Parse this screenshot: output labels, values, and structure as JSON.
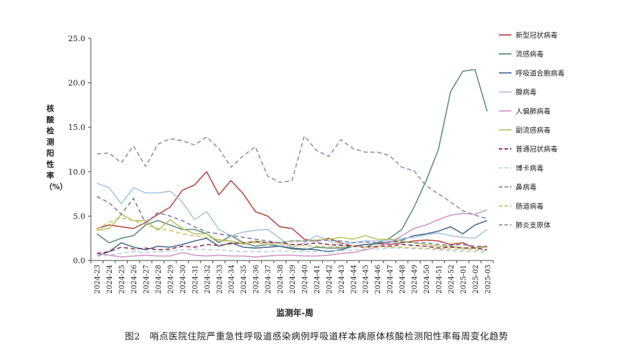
{
  "chart_data": {
    "type": "line",
    "xlabel": "监测年-周",
    "ylabel": "核酸检测阳性率（%）",
    "caption": "图2　哨点医院住院严重急性呼吸道感染病例呼吸道样本病原体核酸检测阳性率每周变化趋势",
    "ylim": [
      0,
      25
    ],
    "yticks": [
      "0.0",
      "5.0",
      "10.0",
      "15.0",
      "20.0",
      "25.0"
    ],
    "grid": false,
    "legend_position": "right",
    "x": [
      "2024-23",
      "2024-24",
      "2024-25",
      "2024-26",
      "2024-27",
      "2024-28",
      "2024-29",
      "2024-30",
      "2024-31",
      "2024-32",
      "2024-33",
      "2024-34",
      "2024-35",
      "2024-36",
      "2024-37",
      "2024-38",
      "2024-39",
      "2024-40",
      "2024-41",
      "2024-42",
      "2024-43",
      "2024-44",
      "2024-45",
      "2024-46",
      "2024-47",
      "2024-48",
      "2024-49",
      "2024-50",
      "2024-51",
      "2024-52",
      "2025-01",
      "2025-02",
      "2025-03"
    ],
    "series": [
      {
        "name": "新型冠状病毒",
        "color": "#b84a45",
        "dash": false,
        "values": [
          3.6,
          4.0,
          3.8,
          3.6,
          4.3,
          5.2,
          6.0,
          7.9,
          8.5,
          10.0,
          7.4,
          9.0,
          7.5,
          5.5,
          5.0,
          3.8,
          3.6,
          2.4,
          2.2,
          2.5,
          2.0,
          1.6,
          1.8,
          1.9,
          1.8,
          2.0,
          2.2,
          2.3,
          2.2,
          1.8,
          2.0,
          1.4,
          1.6
        ]
      },
      {
        "name": "流感病毒",
        "color": "#5f8f7c",
        "dash": false,
        "values": [
          3.0,
          2.0,
          2.5,
          2.8,
          4.0,
          4.5,
          4.0,
          3.5,
          3.5,
          3.0,
          2.0,
          2.8,
          2.0,
          1.6,
          1.8,
          1.6,
          1.3,
          1.2,
          1.5,
          1.4,
          1.4,
          1.6,
          1.5,
          2.0,
          2.5,
          3.5,
          6.0,
          9.0,
          12.5,
          19.0,
          21.3,
          21.5,
          16.8
        ]
      },
      {
        "name": "呼吸道合胞病毒",
        "color": "#4a6c94",
        "dash": false,
        "values": [
          0.5,
          1.0,
          2.0,
          1.5,
          1.2,
          1.6,
          1.5,
          1.8,
          2.2,
          2.5,
          1.6,
          2.0,
          1.5,
          1.4,
          1.5,
          1.6,
          1.4,
          1.3,
          1.2,
          1.0,
          1.2,
          1.6,
          1.8,
          1.9,
          2.1,
          2.3,
          2.8,
          3.0,
          3.3,
          3.8,
          3.0,
          4.0,
          4.5
        ]
      },
      {
        "name": "腺病毒",
        "color": "#a8c6e0",
        "dash": false,
        "values": [
          8.7,
          8.2,
          6.4,
          8.2,
          7.6,
          7.6,
          7.8,
          6.6,
          4.6,
          5.5,
          3.5,
          2.8,
          3.2,
          3.4,
          3.5,
          2.5,
          1.5,
          2.0,
          2.8,
          2.2,
          1.8,
          2.0,
          2.2,
          2.2,
          2.3,
          2.5,
          2.6,
          2.9,
          3.1,
          2.8,
          2.6,
          2.5,
          3.5
        ]
      },
      {
        "name": "人偏肺病毒",
        "color": "#d496c4",
        "dash": false,
        "values": [
          0.8,
          0.6,
          0.4,
          0.5,
          0.6,
          0.5,
          0.5,
          0.9,
          0.6,
          0.5,
          0.6,
          0.5,
          0.5,
          0.4,
          0.5,
          0.6,
          0.6,
          0.5,
          0.5,
          0.6,
          0.8,
          0.9,
          1.2,
          1.5,
          2.0,
          2.8,
          3.6,
          4.0,
          4.6,
          5.1,
          5.3,
          5.2,
          5.7
        ]
      },
      {
        "name": "副流感病毒",
        "color": "#b6c465",
        "dash": false,
        "values": [
          3.4,
          3.6,
          5.2,
          4.5,
          4.5,
          3.4,
          4.6,
          3.6,
          3.0,
          3.0,
          2.2,
          2.2,
          1.8,
          2.2,
          2.0,
          2.0,
          2.2,
          2.2,
          2.3,
          2.4,
          2.6,
          2.4,
          2.8,
          2.4,
          2.4,
          2.2,
          2.0,
          1.8,
          1.6,
          1.6,
          1.4,
          1.4,
          1.5
        ]
      },
      {
        "name": "普通冠状病毒",
        "color": "#8a2f4a",
        "dash": true,
        "values": [
          0.8,
          1.0,
          1.5,
          1.3,
          1.4,
          1.2,
          1.3,
          1.6,
          1.5,
          1.8,
          1.7,
          1.9,
          2.0,
          2.1,
          2.0,
          2.0,
          1.8,
          1.8,
          2.0,
          1.8,
          1.7,
          1.6,
          1.5,
          1.6,
          1.6,
          1.8,
          1.7,
          1.6,
          1.4,
          1.5,
          1.4,
          1.4,
          1.2
        ]
      },
      {
        "name": "博卡病毒",
        "color": "#b7cbe0",
        "dash": true,
        "values": [
          0.5,
          0.6,
          0.8,
          1.0,
          0.9,
          1.0,
          1.1,
          1.2,
          1.3,
          1.2,
          1.2,
          1.1,
          1.0,
          1.0,
          1.0,
          1.1,
          1.0,
          1.0,
          1.0,
          1.1,
          1.1,
          1.2,
          1.3,
          1.3,
          1.4,
          1.4,
          1.3,
          1.3,
          1.2,
          1.1,
          1.0,
          1.0,
          0.9
        ]
      },
      {
        "name": "鼻病毒",
        "color": "#7b7da8",
        "dash": true,
        "values": [
          7.2,
          6.5,
          5.2,
          7.0,
          4.2,
          5.4,
          5.0,
          4.5,
          3.8,
          3.2,
          3.0,
          2.8,
          2.6,
          2.4,
          2.2,
          2.0,
          2.2,
          2.2,
          2.2,
          2.3,
          2.2,
          2.0,
          2.1,
          2.0,
          2.1,
          2.1,
          2.0,
          2.0,
          1.8,
          1.7,
          1.8,
          1.6,
          1.6
        ]
      },
      {
        "name": "肠道病毒",
        "color": "#c8c46a",
        "dash": true,
        "values": [
          3.5,
          4.3,
          4.8,
          4.5,
          4.0,
          3.6,
          3.4,
          3.0,
          2.8,
          2.6,
          2.4,
          2.2,
          2.0,
          2.0,
          1.8,
          1.8,
          1.6,
          1.7,
          1.6,
          1.6,
          1.5,
          1.6,
          1.5,
          1.6,
          1.5,
          1.5,
          1.4,
          1.4,
          1.3,
          1.3,
          1.2,
          1.2,
          1.1
        ]
      },
      {
        "name": "肺炎支原体",
        "color": "#8a8fb5",
        "dash": true,
        "values": [
          12.0,
          12.1,
          11.0,
          12.9,
          10.6,
          13.1,
          13.7,
          13.5,
          13.0,
          13.9,
          12.6,
          10.5,
          11.8,
          12.8,
          9.5,
          8.8,
          9.0,
          14.0,
          12.4,
          11.7,
          13.6,
          12.6,
          12.2,
          12.2,
          11.8,
          10.5,
          10.1,
          8.4,
          7.5,
          6.6,
          5.6,
          5.1,
          4.7
        ]
      }
    ]
  }
}
